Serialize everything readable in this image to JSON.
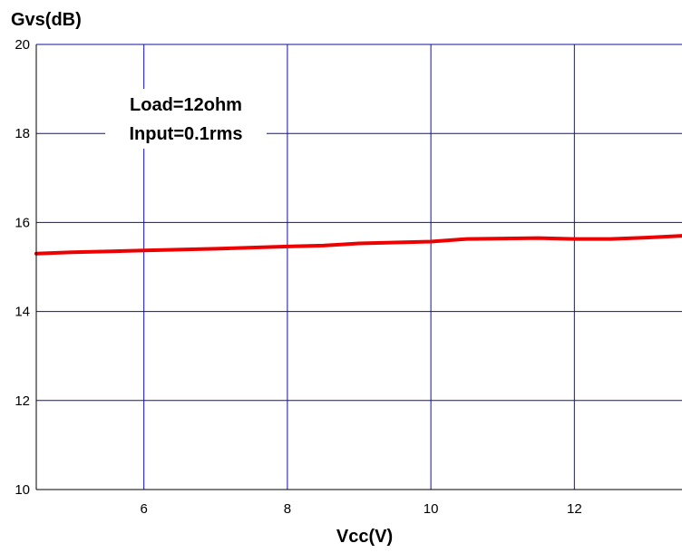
{
  "chart_data": {
    "type": "line",
    "title": "",
    "xlabel": "Vcc(V)",
    "ylabel": "Gvs(dB)",
    "xlim": [
      4.5,
      13.5
    ],
    "ylim": [
      10,
      20
    ],
    "x_ticks": [
      6,
      8,
      10,
      12
    ],
    "y_ticks": [
      10,
      12,
      14,
      16,
      18,
      20
    ],
    "grid": true,
    "annotations": [
      "Load=12ohm",
      "Input=0.1rms"
    ],
    "series": [
      {
        "color": "#ee0000",
        "x": [
          4.5,
          5,
          6,
          7,
          8,
          8.5,
          9,
          10,
          10.5,
          11,
          11.5,
          12,
          12.5,
          13,
          13.5
        ],
        "y": [
          15.3,
          15.33,
          15.37,
          15.41,
          15.46,
          15.48,
          15.53,
          15.57,
          15.63,
          15.64,
          15.65,
          15.63,
          15.63,
          15.66,
          15.7
        ]
      }
    ]
  }
}
